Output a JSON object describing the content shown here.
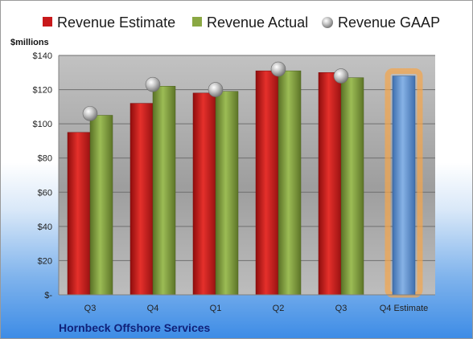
{
  "chart_data": {
    "type": "bar",
    "categories": [
      "Q3",
      "Q4",
      "Q1",
      "Q2",
      "Q3",
      "Q4 Estimate"
    ],
    "series": [
      {
        "name": "Revenue Estimate",
        "type": "bar",
        "color": "#c8191b",
        "values": [
          95,
          112,
          118,
          131,
          130,
          null
        ]
      },
      {
        "name": "Revenue Actual",
        "type": "bar",
        "color": "#7d9a3a",
        "values": [
          105,
          122,
          119,
          131,
          127,
          null
        ]
      },
      {
        "name": "Revenue GAAP",
        "type": "marker",
        "color": "#a8a8a8",
        "values": [
          106,
          123,
          120,
          132,
          128,
          null
        ]
      },
      {
        "name": "",
        "type": "bar",
        "color": "#5b8fd0",
        "highlight": "#f5a54a",
        "values": [
          null,
          null,
          null,
          null,
          null,
          128
        ]
      }
    ],
    "ylabel": "$millions",
    "ylim": [
      0,
      140
    ],
    "yticks": [
      0,
      20,
      40,
      60,
      80,
      100,
      120,
      140
    ],
    "ytick_labels": [
      "$-",
      "$20",
      "$40",
      "$60",
      "$80",
      "$100",
      "$120",
      "$140"
    ],
    "grid": true,
    "legend_position": "top",
    "company": "Hornbeck Offshore Services"
  }
}
